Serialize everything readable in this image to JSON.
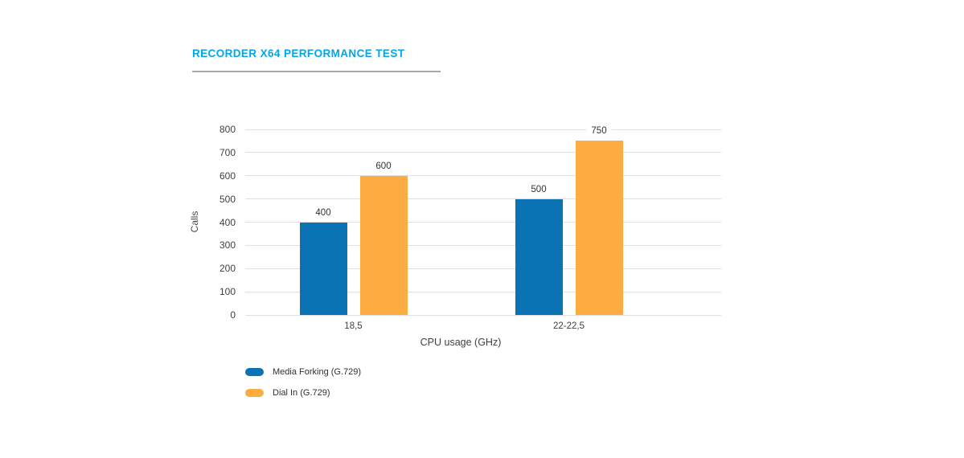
{
  "page": {
    "title": "RECORDER X64 PERFORMANCE TEST"
  },
  "chart_data": {
    "type": "bar",
    "title": "RECORDER X64 PERFORMANCE TEST",
    "categories": [
      "18,5",
      "22-22,5"
    ],
    "series": [
      {
        "name": "Media Forking (G.729)",
        "color": "#0a73b3",
        "values": [
          400,
          500
        ]
      },
      {
        "name": "Dial In (G.729)",
        "color": "#fcac41",
        "values": [
          600,
          750
        ]
      }
    ],
    "xlabel": "CPU usage (GHz)",
    "ylabel": "Calls",
    "ylim": [
      0,
      800
    ],
    "ytick_step": 100,
    "grid": true,
    "data_labels": true,
    "legend_position": "bottom-left",
    "colors": {
      "title": "#00a7e8",
      "gridline": "#e0e0e0",
      "axis_text": "#3f3f3f",
      "value_label": "#333333"
    }
  }
}
